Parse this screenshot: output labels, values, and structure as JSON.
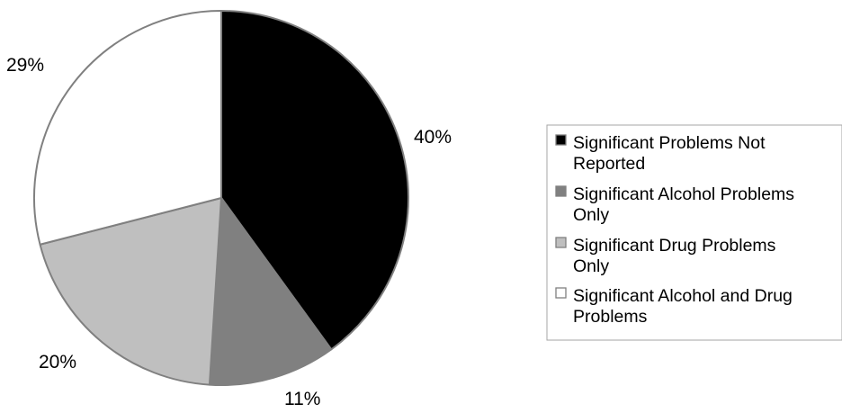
{
  "chart_data": {
    "type": "pie",
    "title": "",
    "categories": [
      "Significant Problems Not Reported",
      "Significant Alcohol Problems Only",
      "Significant Drug Problems Only",
      "Significant Alcohol and Drug Problems"
    ],
    "values": [
      40,
      11,
      20,
      29
    ],
    "value_labels": [
      "40%",
      "11%",
      "20%",
      "29%"
    ],
    "colors": [
      "#000000",
      "#808080",
      "#bfbfbf",
      "#ffffff"
    ],
    "start_angle": "12 o'clock",
    "direction": "clockwise",
    "legend": {
      "placement": "right",
      "entries": [
        {
          "line1": "Significant Problems Not",
          "line2": "Reported"
        },
        {
          "line1": "Significant Alcohol Problems",
          "line2": "Only"
        },
        {
          "line1": "Significant Drug Problems",
          "line2": "Only"
        },
        {
          "line1": "Significant Alcohol and Drug",
          "line2": "Problems"
        }
      ]
    }
  }
}
